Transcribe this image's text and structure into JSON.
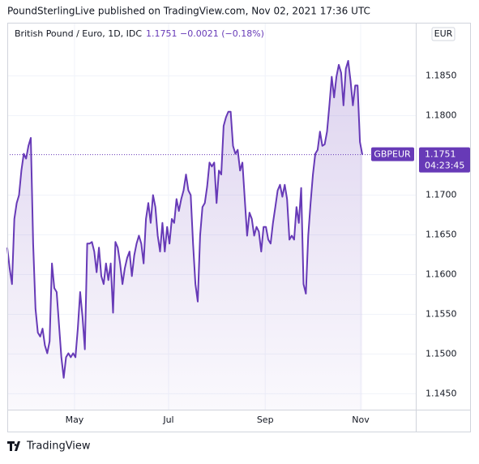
{
  "header": {
    "publisher": "PoundSterlingLive published on TradingView.com, Nov 02, 2021 17:36 UTC"
  },
  "legend": {
    "symbol": "British Pound / Euro, 1D, IDC",
    "price": "1.1751",
    "change": "−0.0021 (−0.18%)"
  },
  "currency": "EUR",
  "price_label": {
    "ticker": "GBPEUR",
    "countdown": "04:23:45"
  },
  "footer": {
    "brand": "TradingView"
  },
  "chart_data": {
    "type": "line",
    "series": [
      {
        "name": "GBPEUR",
        "color": "#673ab7",
        "values": [
          1.1634,
          1.1608,
          1.1588,
          1.167,
          1.169,
          1.17,
          1.1731,
          1.1752,
          1.1746,
          1.1762,
          1.1772,
          1.1639,
          1.1557,
          1.1527,
          1.1522,
          1.1532,
          1.1511,
          1.1501,
          1.1516,
          1.1614,
          1.1583,
          1.1578,
          1.1537,
          1.1496,
          1.147,
          1.1496,
          1.1501,
          1.1496,
          1.1501,
          1.1496,
          1.1532,
          1.1578,
          1.1547,
          1.1506,
          1.1639,
          1.1639,
          1.1641,
          1.1629,
          1.1603,
          1.1634,
          1.1598,
          1.1588,
          1.1614,
          1.1593,
          1.1614,
          1.1552,
          1.1641,
          1.1634,
          1.1614,
          1.1588,
          1.1608,
          1.1621,
          1.1629,
          1.1598,
          1.1624,
          1.1639,
          1.1649,
          1.1639,
          1.1614,
          1.167,
          1.169,
          1.1665,
          1.17,
          1.1685,
          1.1649,
          1.1629,
          1.1665,
          1.1629,
          1.166,
          1.1639,
          1.167,
          1.1665,
          1.1695,
          1.168,
          1.1695,
          1.1706,
          1.1726,
          1.1706,
          1.17,
          1.1639,
          1.1588,
          1.1566,
          1.1649,
          1.1685,
          1.169,
          1.1711,
          1.1741,
          1.1736,
          1.1741,
          1.169,
          1.1731,
          1.1726,
          1.1787,
          1.1798,
          1.1805,
          1.1805,
          1.1762,
          1.1752,
          1.1757,
          1.1731,
          1.1741,
          1.1695,
          1.1649,
          1.1678,
          1.167,
          1.1649,
          1.166,
          1.1654,
          1.1629,
          1.166,
          1.166,
          1.1644,
          1.1639,
          1.1665,
          1.1685,
          1.1706,
          1.1713,
          1.1698,
          1.1713,
          1.1695,
          1.1644,
          1.1649,
          1.1644,
          1.1685,
          1.1665,
          1.1709,
          1.1588,
          1.1576,
          1.1649,
          1.169,
          1.1726,
          1.1752,
          1.1757,
          1.178,
          1.1762,
          1.1764,
          1.178,
          1.1813,
          1.1849,
          1.1823,
          1.1849,
          1.1864,
          1.1854,
          1.1813,
          1.1859,
          1.1869,
          1.1844,
          1.1813,
          1.1838,
          1.1838,
          1.1767,
          1.1751
        ]
      }
    ],
    "xlim": [
      0,
      151
    ],
    "xticks": [
      {
        "value": 28.6,
        "label": "May"
      },
      {
        "value": 68.6,
        "label": "Jul"
      },
      {
        "value": 109.7,
        "label": "Sep"
      },
      {
        "value": 150.3,
        "label": "Nov"
      }
    ],
    "ylim": [
      1.143,
      1.1917
    ],
    "yticks": [
      {
        "value": 1.145,
        "label": "1.1450"
      },
      {
        "value": 1.15,
        "label": "1.1500"
      },
      {
        "value": 1.155,
        "label": "1.1550"
      },
      {
        "value": 1.16,
        "label": "1.1600"
      },
      {
        "value": 1.165,
        "label": "1.1650"
      },
      {
        "value": 1.17,
        "label": "1.1700"
      },
      {
        "value": 1.18,
        "label": "1.1800"
      },
      {
        "value": 1.185,
        "label": "1.1850"
      }
    ],
    "grid": true
  }
}
